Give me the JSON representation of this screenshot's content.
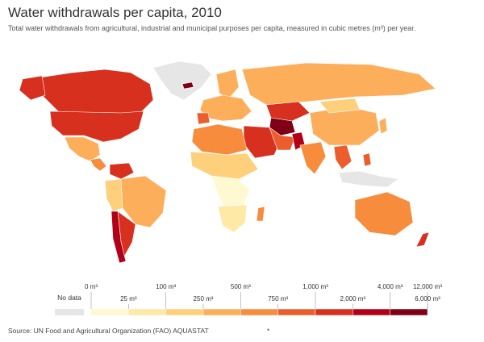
{
  "header": {
    "title": "Water withdrawals per capita, 2010",
    "subtitle": "Total water withdrawals from agricultural, industrial and municipal purposes per capita, measured in cubic metres (m³) per year."
  },
  "legend": {
    "no_data_label": "No data",
    "no_data_color": "#e6e6e6",
    "upper_ticks": [
      "0 m³",
      "100 m³",
      "500 m³",
      "1,000 m³",
      "4,000 m³",
      "12,000 m³"
    ],
    "lower_ticks": [
      "25 m³",
      "250 m³",
      "750 m³",
      "2,000 m³",
      "6,000 m³"
    ],
    "colors": [
      "#fff9d2",
      "#fee9a6",
      "#fed07c",
      "#fdae5b",
      "#f88c3d",
      "#ec5d2e",
      "#d7301f",
      "#b30019",
      "#7f0016"
    ]
  },
  "footer": {
    "source": "Source: UN Food and Agricultural Organization (FAO) AQUASTAT",
    "marker": "•"
  }
}
